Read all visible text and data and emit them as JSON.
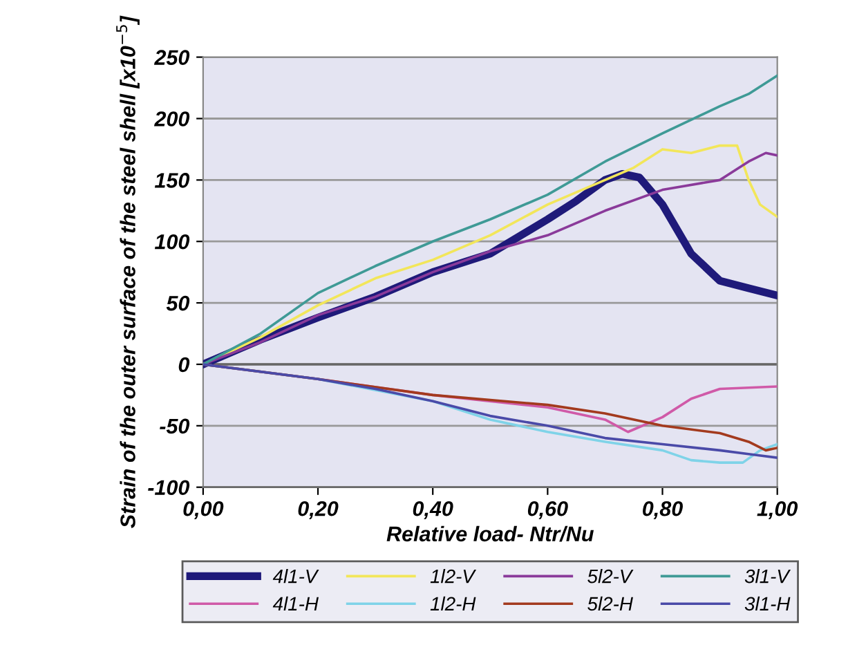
{
  "chart_data": {
    "type": "line",
    "xlabel": "Relative load- Ntr/Nu",
    "ylabel": "Strain of the outer surface of the steel shell [x10$^{−5}$]",
    "xlim": [
      0,
      1
    ],
    "ylim": [
      -100,
      250
    ],
    "xticks": [
      {
        "value": 0,
        "label": "0,00"
      },
      {
        "value": 0.2,
        "label": "0,20"
      },
      {
        "value": 0.4,
        "label": "0,40"
      },
      {
        "value": 0.6,
        "label": "0,60"
      },
      {
        "value": 0.8,
        "label": "0,80"
      },
      {
        "value": 1,
        "label": "1,00"
      }
    ],
    "yticks": [
      -100,
      -50,
      0,
      50,
      100,
      150,
      200,
      250
    ],
    "grid": "y",
    "legend": "bottom",
    "marker": "none",
    "line_style": "solid",
    "series": [
      {
        "name": "4l1-V",
        "color": "#1f1a7a",
        "x": [
          0,
          0.1,
          0.2,
          0.3,
          0.4,
          0.5,
          0.6,
          0.65,
          0.7,
          0.73,
          0.76,
          0.8,
          0.85,
          0.9,
          0.95,
          1.0
        ],
        "values": [
          0,
          20,
          38,
          55,
          75,
          90,
          118,
          133,
          150,
          155,
          152,
          130,
          90,
          68,
          62,
          56
        ]
      },
      {
        "name": "4l1-H",
        "color": "#d05aa8",
        "x": [
          0,
          0.2,
          0.4,
          0.6,
          0.7,
          0.74,
          0.8,
          0.85,
          0.9,
          1.0
        ],
        "values": [
          0,
          -12,
          -25,
          -35,
          -45,
          -55,
          -43,
          -28,
          -20,
          -18
        ]
      },
      {
        "name": "1l2-V",
        "color": "#f2e65a",
        "x": [
          0,
          0.1,
          0.2,
          0.3,
          0.4,
          0.5,
          0.6,
          0.7,
          0.75,
          0.8,
          0.85,
          0.9,
          0.93,
          0.95,
          0.97,
          1.0
        ],
        "values": [
          0,
          22,
          48,
          70,
          85,
          105,
          130,
          150,
          160,
          175,
          172,
          178,
          178,
          150,
          130,
          120
        ]
      },
      {
        "name": "1l2-H",
        "color": "#7fd3e8",
        "x": [
          0,
          0.2,
          0.4,
          0.5,
          0.6,
          0.7,
          0.8,
          0.85,
          0.9,
          0.94,
          0.97,
          1.0
        ],
        "values": [
          0,
          -12,
          -30,
          -45,
          -55,
          -63,
          -70,
          -78,
          -80,
          -80,
          -70,
          -65
        ]
      },
      {
        "name": "5l2-V",
        "color": "#8a3a9a",
        "x": [
          0,
          0.1,
          0.2,
          0.3,
          0.4,
          0.5,
          0.6,
          0.7,
          0.8,
          0.9,
          0.95,
          0.98,
          1.0
        ],
        "values": [
          0,
          18,
          40,
          55,
          75,
          92,
          105,
          125,
          142,
          150,
          165,
          172,
          170
        ]
      },
      {
        "name": "5l2-H",
        "color": "#a33a1e",
        "x": [
          0,
          0.2,
          0.4,
          0.6,
          0.7,
          0.8,
          0.9,
          0.95,
          0.98,
          1.0
        ],
        "values": [
          0,
          -12,
          -25,
          -33,
          -40,
          -50,
          -56,
          -63,
          -70,
          -68
        ]
      },
      {
        "name": "3l1-V",
        "color": "#3f9a96",
        "x": [
          0,
          0.1,
          0.2,
          0.3,
          0.4,
          0.5,
          0.6,
          0.7,
          0.8,
          0.9,
          0.95,
          1.0
        ],
        "values": [
          0,
          25,
          58,
          80,
          100,
          118,
          138,
          165,
          188,
          210,
          220,
          235
        ]
      },
      {
        "name": "3l1-H",
        "color": "#4a4aa8",
        "x": [
          0,
          0.2,
          0.3,
          0.4,
          0.5,
          0.6,
          0.7,
          0.8,
          0.9,
          0.95,
          1.0
        ],
        "values": [
          0,
          -12,
          -20,
          -30,
          -42,
          -50,
          -60,
          -65,
          -70,
          -73,
          -76
        ]
      }
    ]
  }
}
